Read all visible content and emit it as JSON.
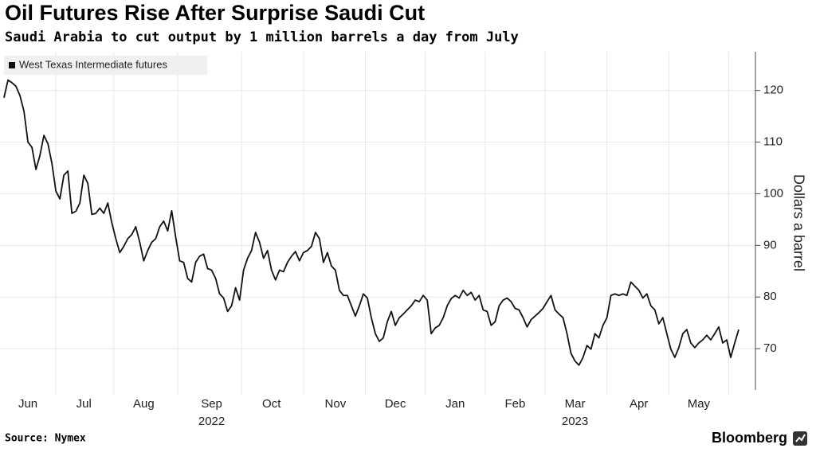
{
  "chart_data": {
    "type": "line",
    "title": "Oil Futures Rise After Surprise Saudi Cut",
    "subtitle": "Saudi Arabia to cut output by 1 million barrels a day from July",
    "y_label": "Dollars a barrel",
    "source": "Source: Nymex",
    "brand": "Bloomberg",
    "grid": true,
    "legend": "top-left",
    "ylim": [
      62,
      127.5
    ],
    "yticks": [
      70,
      80,
      90,
      100,
      110,
      120
    ],
    "categories": [
      null,
      null,
      null,
      null,
      null,
      null,
      "Jun",
      null,
      null,
      null,
      null,
      null,
      null,
      null,
      null,
      null,
      null,
      null,
      null,
      null,
      "Jul",
      null,
      null,
      null,
      null,
      null,
      null,
      null,
      null,
      null,
      null,
      null,
      null,
      null,
      null,
      "Aug",
      null,
      null,
      null,
      null,
      null,
      null,
      null,
      null,
      null,
      null,
      null,
      null,
      null,
      null,
      null,
      null,
      [
        "Sep",
        "2022"
      ],
      null,
      null,
      null,
      null,
      null,
      null,
      null,
      null,
      null,
      null,
      null,
      null,
      null,
      null,
      "Oct",
      null,
      null,
      null,
      null,
      null,
      null,
      null,
      null,
      null,
      null,
      null,
      null,
      null,
      null,
      null,
      "Nov",
      null,
      null,
      null,
      null,
      null,
      null,
      null,
      null,
      null,
      null,
      null,
      null,
      null,
      null,
      "Dec",
      null,
      null,
      null,
      null,
      null,
      null,
      null,
      null,
      null,
      null,
      null,
      null,
      null,
      null,
      "Jan",
      null,
      null,
      null,
      null,
      null,
      null,
      null,
      null,
      null,
      null,
      null,
      null,
      null,
      null,
      "Feb",
      null,
      null,
      null,
      null,
      null,
      null,
      null,
      null,
      null,
      null,
      null,
      null,
      null,
      null,
      [
        "Mar",
        "2023"
      ],
      null,
      null,
      null,
      null,
      null,
      null,
      null,
      null,
      null,
      null,
      null,
      null,
      null,
      null,
      null,
      "Apr",
      null,
      null,
      null,
      null,
      null,
      null,
      null,
      null,
      null,
      null,
      null,
      null,
      null,
      null,
      "May",
      null,
      null,
      null,
      null,
      null,
      null,
      null,
      null,
      null,
      null
    ],
    "series": [
      {
        "name": "West Texas Intermediate futures",
        "color": "#111111",
        "values": [
          118.6,
          122,
          121.5,
          120.8,
          119,
          116,
          110,
          109,
          104.7,
          107.4,
          111.3,
          109.7,
          105.9,
          100.5,
          99,
          103.6,
          104.4,
          96.2,
          96.6,
          98.2,
          103.6,
          102,
          96,
          96.2,
          97.2,
          96.2,
          98.2,
          94.4,
          91.3,
          88.6,
          89.8,
          91.3,
          92.1,
          93.6,
          90.6,
          87,
          89,
          90.6,
          91.3,
          93.6,
          94.7,
          92.8,
          96.7,
          91.6,
          87,
          86.7,
          83.6,
          82.9,
          86.7,
          87.9,
          88.3,
          85.5,
          85.2,
          83.6,
          80.6,
          79.8,
          77.2,
          78.3,
          81.8,
          79.4,
          85.2,
          87.5,
          89,
          92.5,
          90.6,
          87.5,
          89,
          85.2,
          83.3,
          85.2,
          84.9,
          86.7,
          87.9,
          88.8,
          87,
          88.6,
          89,
          89.8,
          92.5,
          91.3,
          86.7,
          88.6,
          86,
          85.2,
          81.3,
          80.3,
          80.3,
          78.3,
          76.3,
          78.3,
          80.6,
          79.8,
          76,
          72.9,
          71.4,
          72.1,
          75.2,
          77.2,
          74.5,
          76,
          76.7,
          77.5,
          78.3,
          79.4,
          79.1,
          80.3,
          79.4,
          72.9,
          74,
          74.5,
          76,
          78.3,
          79.7,
          80.3,
          79.8,
          81.3,
          80.3,
          80.9,
          79.4,
          80.3,
          77.5,
          77.2,
          74.5,
          75.2,
          78.3,
          79.4,
          79.8,
          79.1,
          77.8,
          77.5,
          76,
          74.2,
          75.6,
          76.3,
          77,
          77.8,
          79.1,
          80.3,
          77.5,
          76.7,
          76,
          72.9,
          69.1,
          67.6,
          66.8,
          68.3,
          70.6,
          69.9,
          72.9,
          72.1,
          74.5,
          76,
          80.3,
          80.6,
          80.3,
          80.6,
          80.3,
          82.9,
          82.1,
          81.3,
          79.8,
          80.6,
          78.3,
          77.5,
          74.8,
          76,
          72.9,
          69.9,
          68.3,
          70.2,
          72.9,
          73.7,
          71.1,
          70.2,
          71.1,
          71.7,
          72.6,
          71.7,
          72.9,
          74.2,
          71.1,
          71.7,
          68.3,
          71.1,
          73.7
        ]
      }
    ]
  }
}
